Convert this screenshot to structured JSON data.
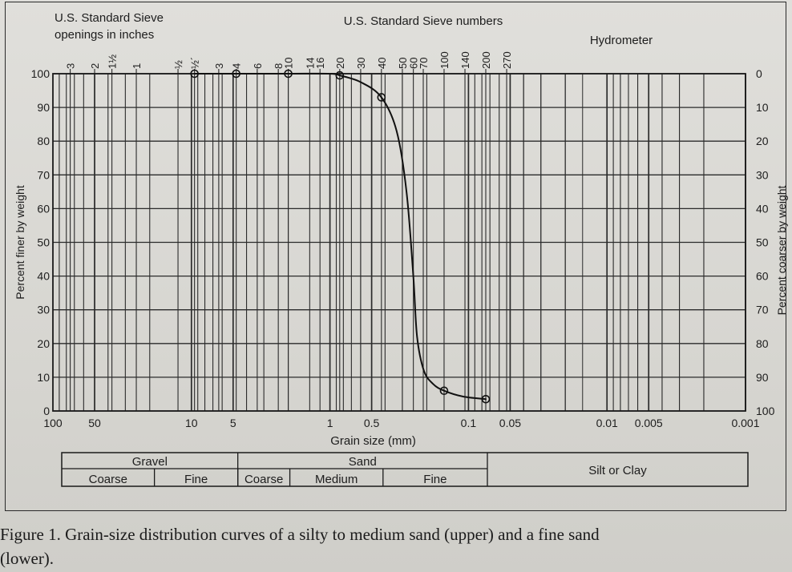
{
  "chart_data": {
    "type": "line",
    "title_top_left": [
      "U.S. Standard Sieve",
      "openings in inches"
    ],
    "title_top_center": "U.S. Standard Sieve numbers",
    "title_top_right": "Hydrometer",
    "xlabel": "Grain size (mm)",
    "ylabel_left": "Percent finer by weight",
    "ylabel_right": "Percent coarser by weight",
    "x_scale": "log",
    "x_reversed": true,
    "xlim": [
      100,
      0.001
    ],
    "ylim": [
      0,
      100
    ],
    "x_tick_labels": [
      {
        "value": 100,
        "label": "100"
      },
      {
        "value": 50,
        "label": "50"
      },
      {
        "value": 10,
        "label": "10"
      },
      {
        "value": 5,
        "label": "5"
      },
      {
        "value": 1,
        "label": "1"
      },
      {
        "value": 0.5,
        "label": "0.5"
      },
      {
        "value": 0.1,
        "label": "0.1"
      },
      {
        "value": 0.05,
        "label": "0.05"
      },
      {
        "value": 0.01,
        "label": "0.01"
      },
      {
        "value": 0.005,
        "label": "0.005"
      },
      {
        "value": 0.001,
        "label": "0.001"
      }
    ],
    "y_left_ticks": [
      "0",
      "10",
      "20",
      "30",
      "40",
      "50",
      "60",
      "70",
      "80",
      "90",
      "100"
    ],
    "y_right_ticks": [
      "100",
      "90",
      "80",
      "70",
      "60",
      "50",
      "40",
      "30",
      "20",
      "10",
      "0"
    ],
    "sieve_openings_inches": [
      {
        "label": "3",
        "mm": 75
      },
      {
        "label": "2",
        "mm": 50
      },
      {
        "label": "1½",
        "mm": 37.5
      },
      {
        "label": "1",
        "mm": 25
      },
      {
        "label": "½",
        "mm": 12.5
      },
      {
        "label": "½´",
        "mm": 9.5
      }
    ],
    "sieve_numbers": [
      {
        "label": "3",
        "mm": 6.35
      },
      {
        "label": "4",
        "mm": 4.75
      },
      {
        "label": "6",
        "mm": 3.35
      },
      {
        "label": "8",
        "mm": 2.36
      },
      {
        "label": "10",
        "mm": 2.0
      },
      {
        "label": "14",
        "mm": 1.4
      },
      {
        "label": "16",
        "mm": 1.18
      },
      {
        "label": "20",
        "mm": 0.85
      },
      {
        "label": "30",
        "mm": 0.6
      },
      {
        "label": "40",
        "mm": 0.425
      },
      {
        "label": "50",
        "mm": 0.3
      },
      {
        "label": "60",
        "mm": 0.25
      },
      {
        "label": "70",
        "mm": 0.212
      },
      {
        "label": "100",
        "mm": 0.15
      },
      {
        "label": "140",
        "mm": 0.106
      },
      {
        "label": "200",
        "mm": 0.075
      },
      {
        "label": "270",
        "mm": 0.053
      }
    ],
    "series": [
      {
        "points": [
          {
            "x": 9.5,
            "y": 100
          },
          {
            "x": 4.75,
            "y": 100
          },
          {
            "x": 2.0,
            "y": 100
          },
          {
            "x": 0.85,
            "y": 99.5
          },
          {
            "x": 0.425,
            "y": 93
          },
          {
            "x": 0.15,
            "y": 6
          },
          {
            "x": 0.075,
            "y": 3.5
          }
        ],
        "curve": [
          {
            "x": 9.5,
            "y": 100
          },
          {
            "x": 2.0,
            "y": 100
          },
          {
            "x": 1.0,
            "y": 100
          },
          {
            "x": 0.85,
            "y": 99.5
          },
          {
            "x": 0.6,
            "y": 97.5
          },
          {
            "x": 0.425,
            "y": 93
          },
          {
            "x": 0.33,
            "y": 83
          },
          {
            "x": 0.28,
            "y": 65
          },
          {
            "x": 0.25,
            "y": 40
          },
          {
            "x": 0.235,
            "y": 22
          },
          {
            "x": 0.21,
            "y": 12
          },
          {
            "x": 0.18,
            "y": 8
          },
          {
            "x": 0.15,
            "y": 6
          },
          {
            "x": 0.11,
            "y": 4.3
          },
          {
            "x": 0.075,
            "y": 3.5
          }
        ]
      }
    ],
    "classification": {
      "row1": [
        {
          "label": "Gravel",
          "from": 100,
          "to": 4.75
        },
        {
          "label": "Sand",
          "from": 4.75,
          "to": 0.075
        },
        {
          "label": "Silt or Clay",
          "from": 0.075,
          "to": 0.001
        }
      ],
      "row2": [
        {
          "label": "Coarse",
          "from": 100,
          "to": 19
        },
        {
          "label": "Fine",
          "from": 19,
          "to": 4.75
        },
        {
          "label": "Coarse",
          "from": 4.75,
          "to": 2.0
        },
        {
          "label": "Medium",
          "from": 2.0,
          "to": 0.425
        },
        {
          "label": "Fine",
          "from": 0.425,
          "to": 0.075
        }
      ]
    }
  },
  "caption": {
    "line1": "Figure 1.  Grain-size distribution curves of a silty to medium sand (upper) and a fine sand",
    "line2": "(lower)."
  }
}
